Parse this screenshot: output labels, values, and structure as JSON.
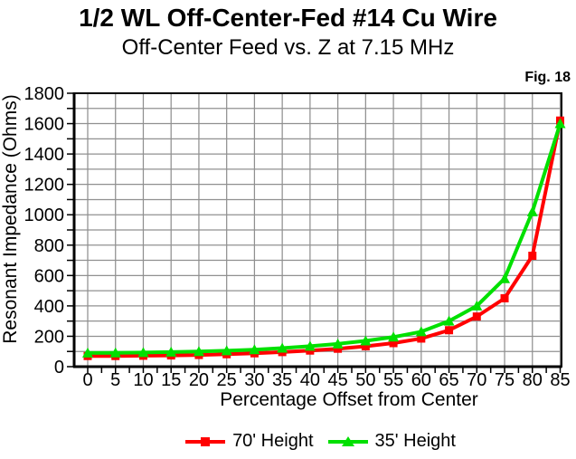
{
  "header": {
    "title": "1/2 WL Off-Center-Fed #14 Cu Wire",
    "subtitle": "Off-Center Feed vs. Z at 7.15 MHz",
    "figure_label": "Fig. 18"
  },
  "chart_data": {
    "type": "line",
    "title": "1/2 WL Off-Center-Fed #14 Cu Wire",
    "subtitle": "Off-Center Feed vs. Z at 7.15 MHz",
    "figure_label": "Fig. 18",
    "xlabel": "Percentage Offset from Center",
    "ylabel": "Resonant Impedance (Ohms)",
    "x": [
      0,
      5,
      10,
      15,
      20,
      25,
      30,
      35,
      40,
      45,
      50,
      55,
      60,
      65,
      70,
      75,
      80,
      85
    ],
    "series": [
      {
        "name": "70' Height",
        "color": "#ff0000",
        "marker": "square",
        "values": [
          70,
          70,
          72,
          74,
          77,
          82,
          88,
          96,
          106,
          118,
          134,
          155,
          185,
          240,
          330,
          450,
          730,
          1620
        ]
      },
      {
        "name": "35' Height",
        "color": "#00e000",
        "marker": "triangle",
        "values": [
          90,
          91,
          93,
          96,
          100,
          105,
          112,
          122,
          135,
          150,
          170,
          195,
          230,
          300,
          400,
          580,
          1020,
          1600
        ]
      }
    ],
    "x_axis": {
      "min": 0,
      "max": 85,
      "tick_step": 5,
      "minor_tick_step": 2.5
    },
    "y_axis": {
      "min": 0,
      "max": 1800,
      "label_step": 200,
      "grid_step": 100
    },
    "grid": true,
    "legend_position": "bottom",
    "colors": {
      "grid": "#909090",
      "axis": "#000000",
      "text": "#000000",
      "background": "#ffffff"
    }
  }
}
